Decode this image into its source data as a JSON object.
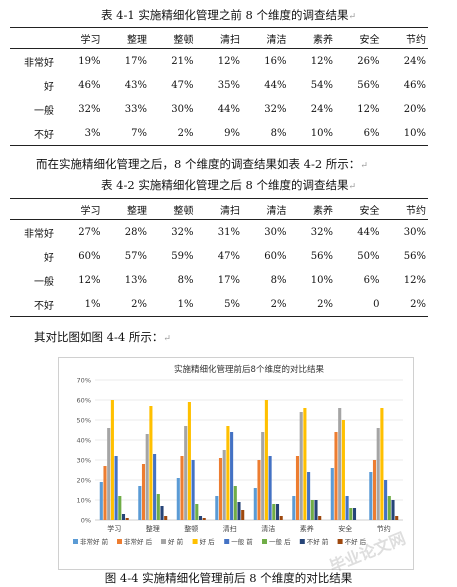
{
  "table1": {
    "caption": "表 4-1 实施精细化管理之前 8 个维度的调查结果",
    "headers": [
      "",
      "学习",
      "整理",
      "整顿",
      "清扫",
      "清洁",
      "素养",
      "安全",
      "节约"
    ],
    "rows": [
      {
        "label": "非常好",
        "values": [
          "19%",
          "17%",
          "21%",
          "12%",
          "16%",
          "12%",
          "26%",
          "24%"
        ]
      },
      {
        "label": "好",
        "values": [
          "46%",
          "43%",
          "47%",
          "35%",
          "44%",
          "54%",
          "56%",
          "46%"
        ]
      },
      {
        "label": "一般",
        "values": [
          "32%",
          "33%",
          "30%",
          "44%",
          "32%",
          "24%",
          "12%",
          "20%"
        ]
      },
      {
        "label": "不好",
        "values": [
          "3%",
          "7%",
          "2%",
          "9%",
          "8%",
          "10%",
          "6%",
          "10%"
        ]
      }
    ]
  },
  "para1": "而在实施精细化管理之后，8 个维度的调查结果如表 4-2 所示：",
  "table2": {
    "caption": "表 4-2 实施精细化管理之后 8 个维度的调查结果",
    "headers": [
      "",
      "学习",
      "整理",
      "整顿",
      "清扫",
      "清洁",
      "素养",
      "安全",
      "节约"
    ],
    "rows": [
      {
        "label": "非常好",
        "values": [
          "27%",
          "28%",
          "32%",
          "31%",
          "30%",
          "32%",
          "44%",
          "30%"
        ]
      },
      {
        "label": "好",
        "values": [
          "60%",
          "57%",
          "59%",
          "47%",
          "60%",
          "56%",
          "50%",
          "56%"
        ]
      },
      {
        "label": "一般",
        "values": [
          "12%",
          "13%",
          "8%",
          "17%",
          "8%",
          "10%",
          "6%",
          "12%"
        ]
      },
      {
        "label": "不好",
        "values": [
          "1%",
          "2%",
          "1%",
          "5%",
          "2%",
          "2%",
          "0",
          "2%"
        ]
      }
    ]
  },
  "para2": "其对比图如图 4-4 所示：",
  "figure_caption": "图 4-4 实施精细化管理前后 8 个维度的对比结果",
  "watermark": "毕业论文网",
  "chart_data": {
    "type": "bar",
    "title": "实施精细化管理前后8个维度的对比结果",
    "categories": [
      "学习",
      "整理",
      "整顿",
      "清扫",
      "清洁",
      "素养",
      "安全",
      "节约"
    ],
    "ylim": [
      0,
      70
    ],
    "yticks": [
      "0%",
      "10%",
      "20%",
      "30%",
      "40%",
      "50%",
      "60%",
      "70%"
    ],
    "legend_position": "bottom",
    "series": [
      {
        "name": "非常好 前",
        "color": "#5B9BD5",
        "values": [
          19,
          17,
          21,
          12,
          16,
          12,
          26,
          24
        ]
      },
      {
        "name": "非常好 后",
        "color": "#ED7D31",
        "values": [
          27,
          28,
          32,
          31,
          30,
          32,
          44,
          30
        ]
      },
      {
        "name": "好 前",
        "color": "#A5A5A5",
        "values": [
          46,
          43,
          47,
          35,
          44,
          54,
          56,
          46
        ]
      },
      {
        "name": "好 后",
        "color": "#FFC000",
        "values": [
          60,
          57,
          59,
          47,
          60,
          56,
          50,
          56
        ]
      },
      {
        "name": "一般 前",
        "color": "#4472C4",
        "values": [
          32,
          33,
          30,
          44,
          32,
          24,
          12,
          20
        ]
      },
      {
        "name": "一般 后",
        "color": "#70AD47",
        "values": [
          12,
          13,
          8,
          17,
          8,
          10,
          6,
          12
        ]
      },
      {
        "name": "不好 前",
        "color": "#264478",
        "values": [
          3,
          7,
          2,
          9,
          8,
          10,
          6,
          10
        ]
      },
      {
        "name": "不好 后",
        "color": "#9E480E",
        "values": [
          1,
          2,
          1,
          5,
          2,
          2,
          0,
          2
        ]
      }
    ]
  }
}
